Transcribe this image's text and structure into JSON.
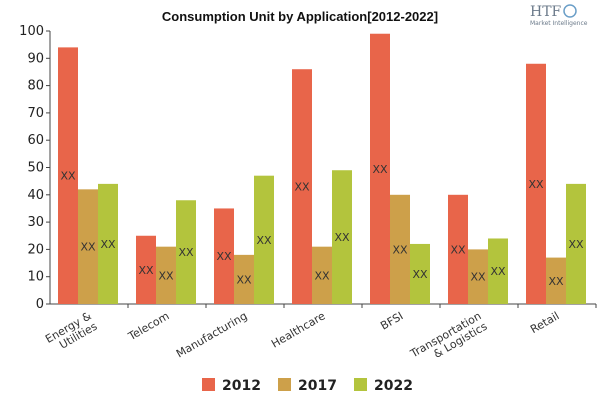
{
  "chart_data": {
    "type": "bar",
    "title": "Consumption Unit by  Application[2012-2022]",
    "categories": [
      "Energy & Utilities",
      "Telecom",
      "Manufacturing",
      "Healthcare",
      "BFSI",
      "Transportation & Logistics",
      "Retail"
    ],
    "category_lines": [
      [
        "Energy &",
        "Utilities"
      ],
      [
        "Telecom"
      ],
      [
        "Manufacturing"
      ],
      [
        "Healthcare"
      ],
      [
        "BFSI"
      ],
      [
        "Transportation",
        "& Logistics"
      ],
      [
        "Retail"
      ]
    ],
    "series": [
      {
        "name": "2012",
        "color": "#e8654a",
        "values": [
          94,
          25,
          35,
          86,
          99,
          40,
          88
        ]
      },
      {
        "name": "2017",
        "color": "#cda04a",
        "values": [
          42,
          21,
          18,
          21,
          40,
          20,
          17
        ]
      },
      {
        "name": "2022",
        "color": "#b3c43d",
        "values": [
          44,
          38,
          47,
          49,
          22,
          24,
          44
        ]
      }
    ],
    "data_label": "XX",
    "yticks": [
      0,
      10,
      20,
      30,
      40,
      50,
      60,
      70,
      80,
      90,
      100
    ],
    "ylim": [
      0,
      100
    ],
    "grid": false,
    "legend_position": "bottom"
  },
  "logo": {
    "main": "HTF",
    "sub": "Market Intelligence"
  }
}
